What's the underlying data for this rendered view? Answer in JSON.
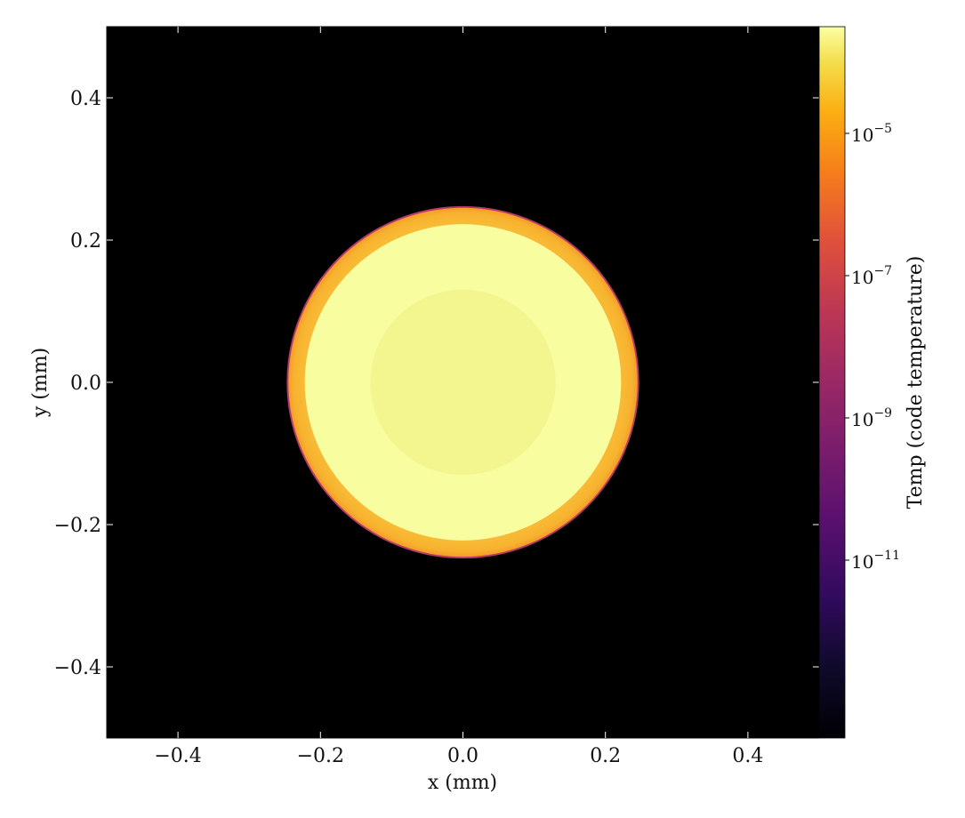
{
  "chart_data": {
    "type": "heatmap",
    "title": "",
    "xlabel": "x  (mm)",
    "ylabel": "y  (mm)",
    "xlim": [
      -0.5,
      0.5
    ],
    "ylim": [
      -0.5,
      0.5
    ],
    "x_ticks": [
      -0.4,
      -0.2,
      0.0,
      0.2,
      0.4
    ],
    "x_tick_labels": [
      "−0.4",
      "−0.2",
      "0.0",
      "0.2",
      "0.4"
    ],
    "y_ticks": [
      0.4,
      0.2,
      0.0,
      -0.2,
      -0.4
    ],
    "y_tick_labels": [
      "0.4",
      "0.2",
      "0.0",
      "−0.2",
      "−0.4"
    ],
    "colormap": "inferno",
    "colorbar": {
      "label": "Temp  (code temperature)",
      "scale": "log",
      "range_log10": [
        -13.5,
        -3.5
      ],
      "ticks": [
        {
          "exponent": -5,
          "base": "10",
          "sup": "−5"
        },
        {
          "exponent": -7,
          "base": "10",
          "sup": "−7"
        },
        {
          "exponent": -9,
          "base": "10",
          "sup": "−9"
        },
        {
          "exponent": -11,
          "base": "10",
          "sup": "−11"
        }
      ]
    },
    "regions": [
      {
        "name": "background",
        "color": "#000000"
      },
      {
        "name": "outer-ring",
        "outer_radius": 0.245,
        "inner_radius": 0.222,
        "color": "#f9c23c"
      },
      {
        "name": "bright-shell",
        "outer_radius": 0.222,
        "inner_radius": 0.13,
        "color": "#f8fd9f"
      },
      {
        "name": "core",
        "outer_radius": 0.13,
        "color": "#f3f58f"
      },
      {
        "name": "edge-line",
        "radius": 0.246,
        "color": "#b83a6a"
      }
    ]
  }
}
